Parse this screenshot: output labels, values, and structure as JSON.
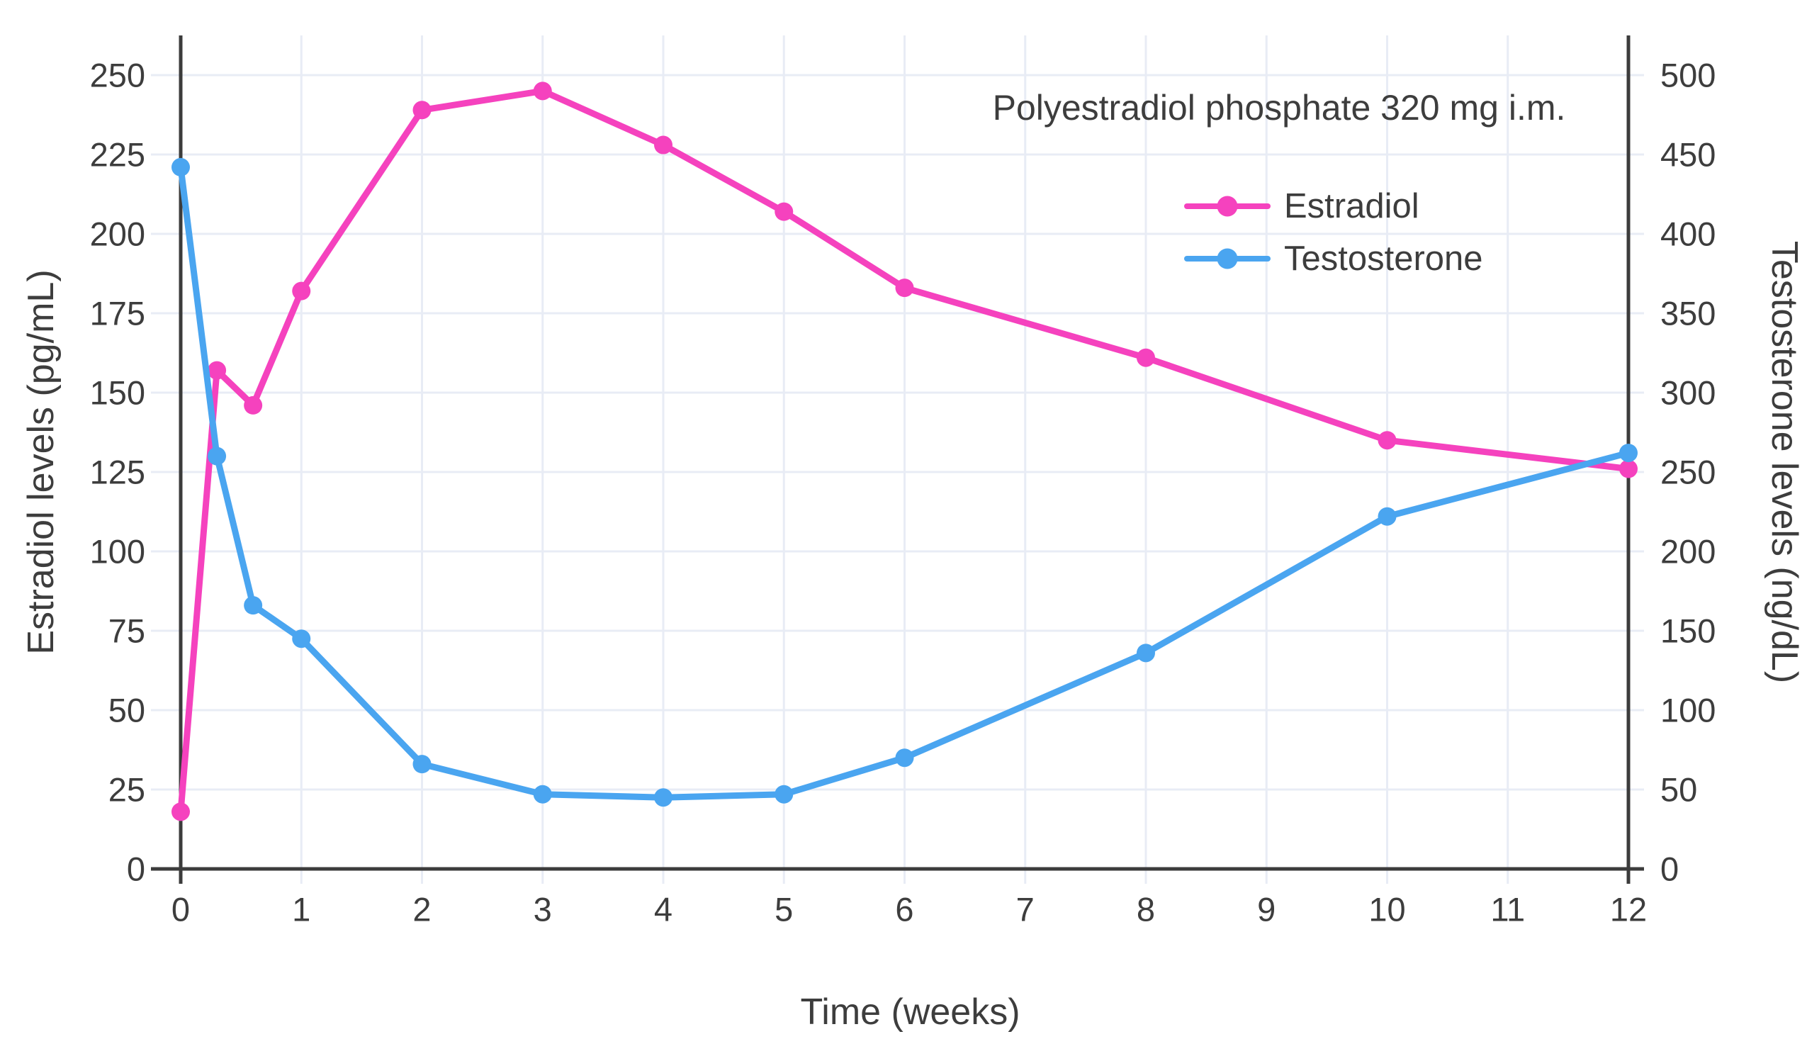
{
  "chart_data": {
    "type": "line",
    "title_annotation": "Polyestradiol phosphate 320 mg i.m.",
    "xlabel": "Time (weeks)",
    "ylabel_left": "Estradiol levels (pg/mL)",
    "ylabel_right": "Testosterone levels (ng/dL)",
    "x_range": [
      0,
      12
    ],
    "y_range_left": [
      0,
      250
    ],
    "y_range_right": [
      0,
      500
    ],
    "x_ticks": [
      0,
      1,
      2,
      3,
      4,
      5,
      6,
      7,
      8,
      9,
      10,
      11,
      12
    ],
    "y_ticks_left": [
      0,
      25,
      50,
      75,
      100,
      125,
      150,
      175,
      200,
      225,
      250
    ],
    "y_ticks_right": [
      0,
      50,
      100,
      150,
      200,
      250,
      300,
      350,
      400,
      450,
      500
    ],
    "grid": true,
    "legend_position": "inside-upper-right",
    "legend": [
      {
        "label": "Estradiol"
      },
      {
        "label": "Testosterone"
      }
    ],
    "series": [
      {
        "name": "Estradiol",
        "axis": "left",
        "unit": "pg/mL",
        "color": "#f542be",
        "x": [
          0,
          0.3,
          0.6,
          1,
          2,
          3,
          4,
          5,
          6,
          8,
          10,
          12
        ],
        "values": [
          18,
          157,
          146,
          182,
          239,
          245,
          228,
          207,
          183,
          161,
          135,
          126
        ]
      },
      {
        "name": "Testosterone",
        "axis": "right",
        "unit": "ng/dL",
        "color": "#4aa5f0",
        "x": [
          0,
          0.3,
          0.6,
          1,
          2,
          3,
          4,
          5,
          6,
          8,
          10,
          12
        ],
        "values": [
          442,
          260,
          166,
          145,
          66,
          47,
          45,
          47,
          70,
          136,
          222,
          262
        ]
      }
    ],
    "colors": {
      "background": "#ffffff",
      "grid": "#e8ecf5",
      "axis": "#3c3c3c",
      "text": "#3d3d3d"
    }
  }
}
